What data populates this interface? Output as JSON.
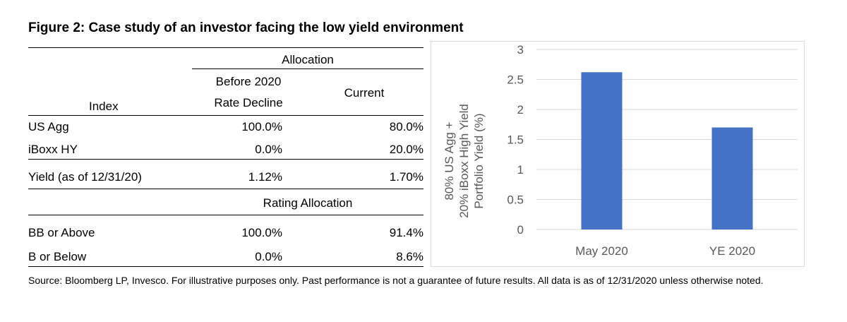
{
  "figure": {
    "title": "Figure 2: Case study of an investor facing the low yield environment",
    "source": "Source: Bloomberg LP, Invesco. For illustrative purposes only. Past performance is not a guarantee of future results. All data is as of 12/31/2020 unless otherwise noted."
  },
  "table": {
    "group_header": "Allocation",
    "index_header": "Index",
    "col_before_line1": "Before 2020",
    "col_before_line2": "Rate Decline",
    "col_current": "Current",
    "rows": [
      {
        "label": "US Agg",
        "before": "100.0%",
        "current": "80.0%"
      },
      {
        "label": "iBoxx HY",
        "before": "0.0%",
        "current": "20.0%"
      }
    ],
    "yield_row": {
      "label": "Yield (as of 12/31/20)",
      "before": "1.12%",
      "current": "1.70%"
    },
    "rating_header": "Rating Allocation",
    "rating_rows": [
      {
        "label": "BB or Above",
        "before": "100.0%",
        "current": "91.4%"
      },
      {
        "label": "B or Below",
        "before": "0.0%",
        "current": "8.6%"
      }
    ]
  },
  "chart_data": {
    "type": "bar",
    "categories": [
      "May 2020",
      "YE 2020"
    ],
    "values": [
      2.62,
      1.7
    ],
    "ylabel_line1": "80% US Agg +",
    "ylabel_line2": "20% iBoxx High Yield",
    "ylabel_line3": "Portfolio Yield (%)",
    "ylim": [
      0,
      3
    ],
    "yticks": [
      "0",
      "0.5",
      "1",
      "1.5",
      "2",
      "2.5",
      "3"
    ],
    "grid": true,
    "bar_color": "#4472C4"
  }
}
